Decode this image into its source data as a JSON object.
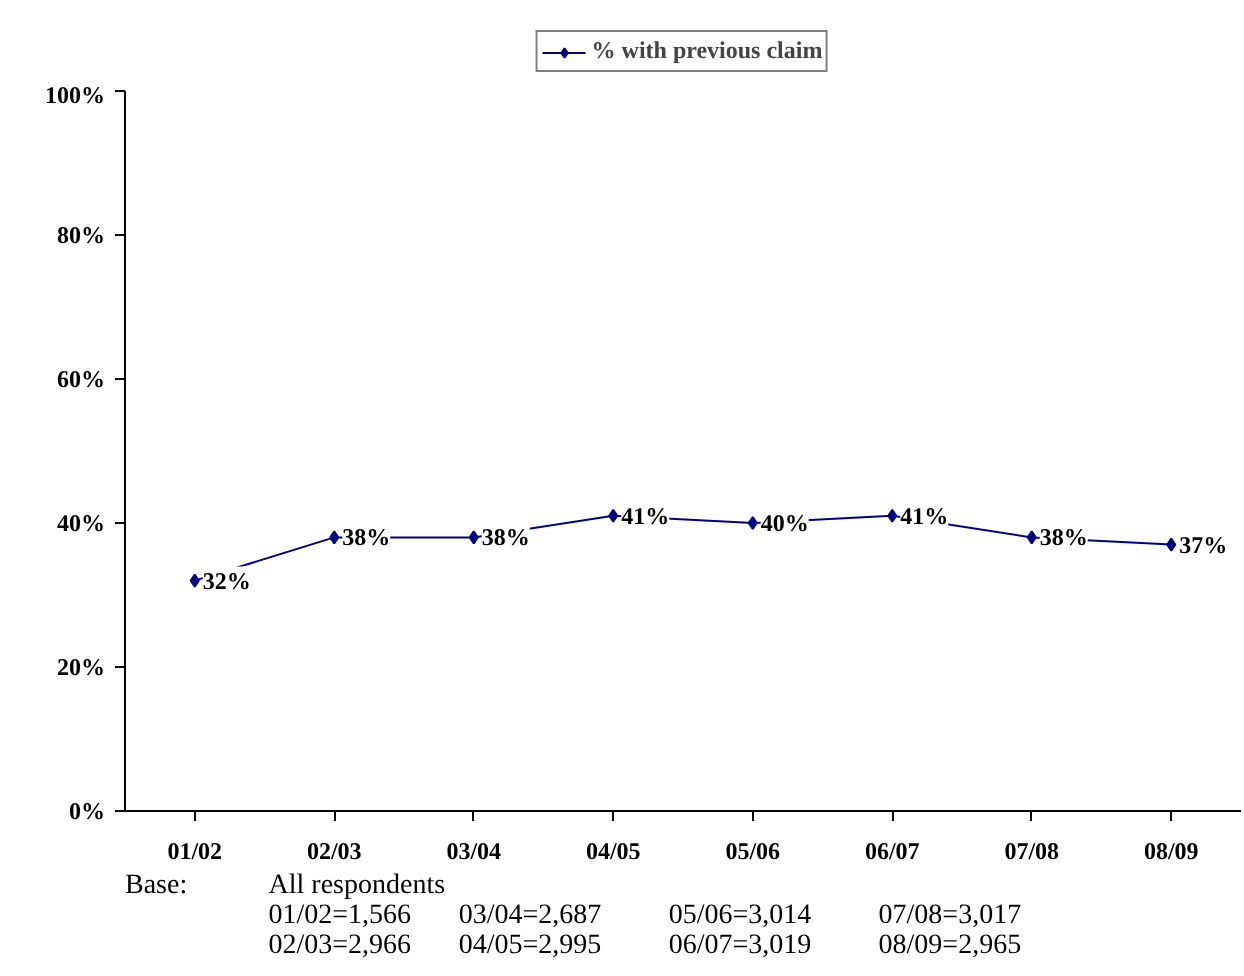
{
  "chart_data": {
    "type": "line",
    "categories": [
      "01/02",
      "02/03",
      "03/04",
      "04/05",
      "05/06",
      "06/07",
      "07/08",
      "08/09"
    ],
    "series": [
      {
        "name": "% with previous claim",
        "color": "#000080",
        "values": [
          32,
          38,
          38,
          41,
          40,
          41,
          38,
          37
        ],
        "value_labels": [
          "32%",
          "38%",
          "38%",
          "41%",
          "40%",
          "41%",
          "38%",
          "37%"
        ]
      }
    ],
    "ylim": [
      0,
      100
    ],
    "yticks": [
      {
        "value": 0,
        "label": "0%"
      },
      {
        "value": 20,
        "label": "20%"
      },
      {
        "value": 40,
        "label": "40%"
      },
      {
        "value": 60,
        "label": "60%"
      },
      {
        "value": 80,
        "label": "80%"
      },
      {
        "value": 100,
        "label": "100%"
      }
    ],
    "marker": "diamond",
    "line_style": "solid",
    "grid": false,
    "legend": "top",
    "annotations": [
      "Base:",
      "All respondents",
      "01/02=1,566",
      "02/03=2,966",
      "03/04=2,687",
      "04/05=2,995",
      "05/06=3,014",
      "06/07=3,019",
      "07/08=3,017",
      "08/09=2,965"
    ]
  }
}
